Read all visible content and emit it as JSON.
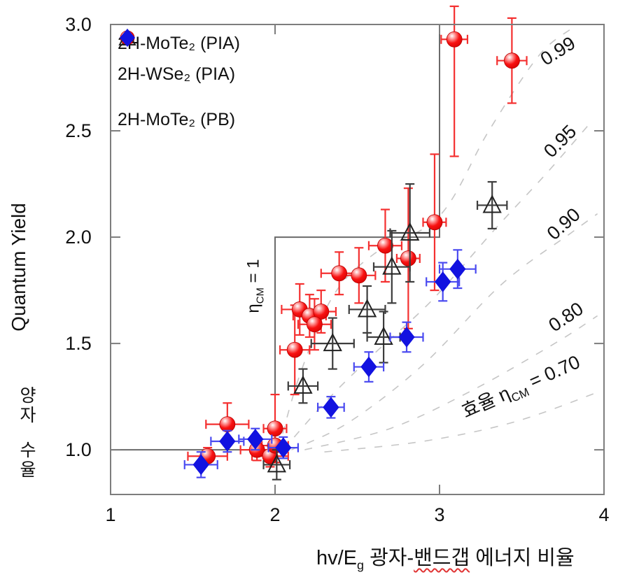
{
  "figure": {
    "bg": "#ffffff"
  },
  "legend": {
    "items": [
      {
        "marker": "glossy-red-circle",
        "label": "2H-MoTe₂ (PIA)"
      },
      {
        "marker": "open-triangle",
        "label": "2H-WSe₂ (PIA)"
      },
      {
        "marker": "blue-diamond",
        "label": "2H-MoTe₂ (PB)"
      }
    ]
  },
  "y_axis": {
    "title_en": "Quantum Yield",
    "title_ko_top": "양자",
    "title_ko_bottom": "수율"
  },
  "x_axis": {
    "title_main": "hv/E",
    "title_sub": "g",
    "title_part1": "  광자-",
    "title_underlined": "밴드갭",
    "title_part2": " 에너지 비율",
    "underline_color": "#e03434"
  },
  "chart_data": {
    "type": "scatter",
    "title": "",
    "xlabel": "hv/Eg 광자-밴드갭 에너지 비율",
    "ylabel": "Quantum Yield 양자 수율",
    "xlim": [
      1,
      4
    ],
    "ylim": [
      0.79,
      3.0
    ],
    "x_ticks": [
      1,
      2,
      3,
      4
    ],
    "y_ticks": [
      1.0,
      1.5,
      2.0,
      2.5,
      3.0
    ],
    "grid": false,
    "legend_position": "top-left",
    "series": [
      {
        "name": "2H-MoTe₂ (PIA)",
        "marker": "glossy-red-circle",
        "marker_color": "#ee0f0f",
        "errorbar_color": "#f43030",
        "points": [
          [
            1.59,
            0.97,
            0.12,
            0.04
          ],
          [
            1.71,
            1.12,
            0.13,
            0.1
          ],
          [
            1.89,
            1.0,
            0.1,
            0.05
          ],
          [
            1.97,
            0.97,
            0.11,
            0.05
          ],
          [
            2.0,
            1.02,
            0.08,
            0.08
          ],
          [
            2.0,
            1.1,
            0.07,
            0.16
          ],
          [
            2.12,
            1.47,
            0.09,
            0.21
          ],
          [
            2.15,
            1.66,
            0.11,
            0.12
          ],
          [
            2.21,
            1.63,
            0.1,
            0.1
          ],
          [
            2.28,
            1.65,
            0.09,
            0.1
          ],
          [
            2.24,
            1.59,
            0.1,
            0.12
          ],
          [
            2.39,
            1.83,
            0.11,
            0.1
          ],
          [
            2.51,
            1.82,
            0.1,
            0.13
          ],
          [
            2.67,
            1.96,
            0.1,
            0.17
          ],
          [
            2.81,
            1.9,
            0.07,
            0.33
          ],
          [
            2.97,
            2.07,
            0.07,
            0.32
          ],
          [
            3.09,
            2.93,
            0.08,
            0.55
          ],
          [
            3.44,
            2.83,
            0.09,
            0.2
          ]
        ]
      },
      {
        "name": "2H-WSe₂ (PIA)",
        "marker": "open-triangle",
        "marker_color": "#222222",
        "errorbar_color": "#3d3d3d",
        "points": [
          [
            2.01,
            0.93,
            0.08,
            0.07
          ],
          [
            2.17,
            1.3,
            0.09,
            0.08
          ],
          [
            2.35,
            1.5,
            0.13,
            0.12
          ],
          [
            2.56,
            1.66,
            0.11,
            0.11
          ],
          [
            2.66,
            1.53,
            0.1,
            0.12
          ],
          [
            2.71,
            1.86,
            0.11,
            0.17
          ],
          [
            2.82,
            2.02,
            0.12,
            0.23
          ],
          [
            3.32,
            2.15,
            0.09,
            0.11
          ]
        ]
      },
      {
        "name": "2H-MoTe₂ (PB)",
        "marker": "blue-diamond",
        "marker_color": "#1212e0",
        "errorbar_color": "#4a4af0",
        "points": [
          [
            1.55,
            0.93,
            0.1,
            0.06
          ],
          [
            1.71,
            1.04,
            0.1,
            0.05
          ],
          [
            1.88,
            1.05,
            0.1,
            0.05
          ],
          [
            2.05,
            1.01,
            0.09,
            0.05
          ],
          [
            2.34,
            1.2,
            0.08,
            0.05
          ],
          [
            2.57,
            1.39,
            0.09,
            0.07
          ],
          [
            2.8,
            1.53,
            0.1,
            0.07
          ],
          [
            3.02,
            1.79,
            0.1,
            0.09
          ],
          [
            3.11,
            1.85,
            0.11,
            0.09
          ]
        ]
      }
    ],
    "step_line": {
      "color": "#6a6a6a",
      "points": [
        [
          1,
          1
        ],
        [
          2,
          1
        ],
        [
          2,
          2
        ],
        [
          3,
          2
        ],
        [
          3,
          3
        ]
      ],
      "label": {
        "sym": "η",
        "sub": "CM",
        "rest": " = 1",
        "pos": [
          1.9,
          1.77
        ],
        "rotation": -90
      }
    },
    "model_curves": {
      "color": "#c6c6c6",
      "curves": [
        {
          "eta": "0.99",
          "points": [
            [
              2.02,
              1.0
            ],
            [
              2.15,
              1.35
            ],
            [
              2.35,
              1.72
            ],
            [
              2.6,
              1.92
            ],
            [
              3.0,
              2.1
            ],
            [
              3.3,
              2.5
            ],
            [
              3.6,
              2.85
            ],
            [
              3.8,
              2.98
            ]
          ],
          "label": {
            "text": "0.99",
            "pos": [
              3.74,
              2.85
            ],
            "rotation": -32
          }
        },
        {
          "eta": "0.95",
          "points": [
            [
              2.05,
              1.0
            ],
            [
              2.3,
              1.22
            ],
            [
              2.6,
              1.45
            ],
            [
              2.95,
              1.7
            ],
            [
              3.34,
              2.04
            ],
            [
              3.65,
              2.3
            ],
            [
              3.92,
              2.54
            ]
          ],
          "label": {
            "text": "0.95",
            "pos": [
              3.76,
              2.43
            ],
            "rotation": -45
          }
        },
        {
          "eta": "0.90",
          "points": [
            [
              2.1,
              1.0
            ],
            [
              2.45,
              1.13
            ],
            [
              2.9,
              1.4
            ],
            [
              3.38,
              1.78
            ],
            [
              3.8,
              2.02
            ],
            [
              3.96,
              2.11
            ]
          ],
          "label": {
            "text": "0.90",
            "pos": [
              3.78,
              2.04
            ],
            "rotation": -42
          }
        },
        {
          "eta": "0.80",
          "points": [
            [
              2.18,
              1.0
            ],
            [
              2.7,
              1.1
            ],
            [
              3.2,
              1.28
            ],
            [
              3.7,
              1.5
            ],
            [
              3.96,
              1.63
            ]
          ],
          "label": {
            "text": "0.80",
            "pos": [
              3.79,
              1.6
            ],
            "rotation": -34
          }
        },
        {
          "eta": "0.70",
          "points": [
            [
              2.3,
              0.99
            ],
            [
              2.9,
              1.04
            ],
            [
              3.45,
              1.13
            ],
            [
              3.96,
              1.27
            ]
          ],
          "label": {
            "prefix": "효율 ",
            "sym": "η",
            "sub": "CM",
            "rest": " = 0.70",
            "pos": [
              3.51,
              1.27
            ],
            "rotation": -24
          }
        }
      ]
    },
    "frame_color": "#7d7d7d",
    "tick_label_color": "#111111"
  }
}
